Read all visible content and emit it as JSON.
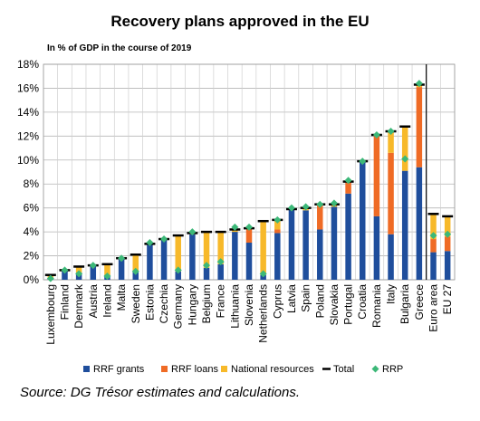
{
  "chart_data": {
    "type": "bar",
    "stacked": true,
    "title": "Recovery plans approved in the EU",
    "subtitle": "In % of GDP in the course of 2019",
    "ylim": [
      0,
      18
    ],
    "yticks": [
      "0%",
      "2%",
      "4%",
      "6%",
      "8%",
      "10%",
      "12%",
      "14%",
      "16%",
      "18%"
    ],
    "ytick_values": [
      0,
      2,
      4,
      6,
      8,
      10,
      12,
      14,
      16,
      18
    ],
    "grid": true,
    "legend_position": "bottom",
    "categories": [
      "Luxembourg",
      "Finland",
      "Denmark",
      "Austria",
      "Ireland",
      "Malta",
      "Sweden",
      "Estonia",
      "Czechia",
      "Germany",
      "Hungary",
      "Belgium",
      "France",
      "Lithuania",
      "Slovenia",
      "Netherlands",
      "Cyprus",
      "Latvia",
      "Spain",
      "Poland",
      "Slovakia",
      "Portugal",
      "Croatia",
      "Romania",
      "Italy",
      "Bulgaria",
      "Greece",
      "Euro area",
      "EU 27"
    ],
    "series": [
      {
        "name": "RRF grants",
        "kind": "bar",
        "color": "#1f4e9c",
        "values": [
          0.1,
          0.8,
          0.6,
          1.2,
          0.4,
          1.8,
          0.7,
          3.0,
          3.4,
          0.7,
          3.8,
          1.0,
          1.3,
          4.0,
          3.1,
          0.4,
          3.9,
          5.9,
          5.8,
          4.2,
          6.1,
          7.2,
          9.9,
          5.3,
          3.8,
          9.1,
          9.4,
          2.3,
          2.4
        ]
      },
      {
        "name": "RRF loans",
        "kind": "bar",
        "color": "#ef6b25",
        "values": [
          0,
          0,
          0,
          0,
          0,
          0,
          0,
          0,
          0,
          0,
          0,
          0,
          0,
          0,
          1.1,
          0,
          0.3,
          0,
          0,
          2.1,
          0,
          1.0,
          0,
          6.8,
          6.8,
          0,
          6.7,
          1.1,
          1.2
        ]
      },
      {
        "name": "National resources",
        "kind": "bar",
        "color": "#f7b92a",
        "values": [
          0.3,
          0,
          0.5,
          0,
          0.9,
          0,
          1.4,
          0,
          0,
          3.0,
          0.1,
          3.0,
          2.7,
          0.2,
          0.1,
          4.5,
          0.8,
          0,
          0.2,
          0,
          0.2,
          0,
          0,
          0,
          1.8,
          3.7,
          0.2,
          2.1,
          1.7
        ]
      },
      {
        "name": "Total",
        "kind": "marker-line",
        "color": "#000000",
        "values": [
          0.4,
          0.8,
          1.1,
          1.2,
          1.3,
          1.8,
          2.1,
          3.0,
          3.4,
          3.7,
          3.9,
          4.0,
          4.0,
          4.2,
          4.3,
          4.9,
          5.0,
          5.9,
          6.0,
          6.3,
          6.3,
          8.2,
          9.9,
          12.1,
          12.4,
          12.8,
          16.3,
          5.5,
          5.3
        ]
      },
      {
        "name": "RRP",
        "kind": "marker-diamond",
        "color": "#3cb878",
        "values": [
          0.1,
          0.8,
          0.5,
          1.2,
          0.3,
          1.8,
          0.7,
          3.1,
          3.4,
          0.8,
          4.0,
          1.2,
          1.5,
          4.4,
          4.4,
          0.5,
          5.0,
          6.0,
          6.1,
          6.3,
          6.4,
          8.3,
          9.9,
          12.1,
          12.4,
          10.1,
          16.4,
          3.7,
          3.8
        ]
      }
    ]
  },
  "source": "Source: DG Trésor estimates and calculations."
}
